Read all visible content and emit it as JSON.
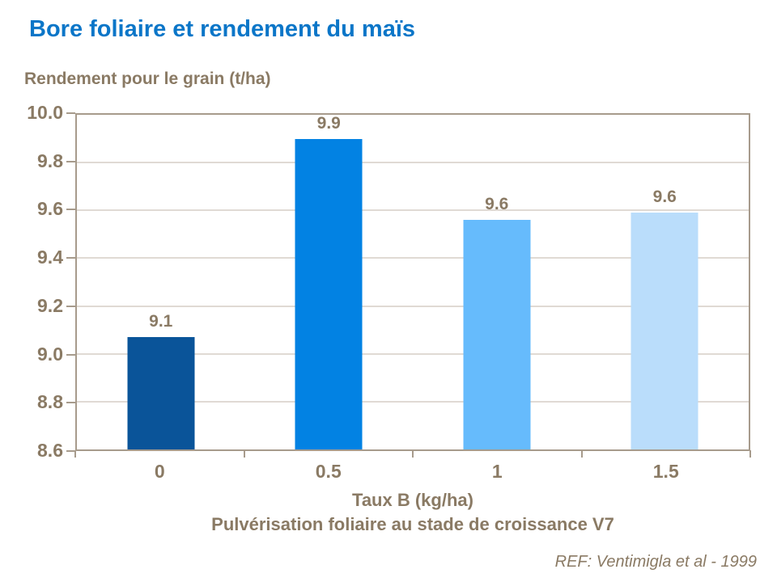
{
  "chart_data": {
    "type": "bar",
    "title": "Bore foliaire et rendement du maïs",
    "ylabel": "Rendement pour le grain (t/ha)",
    "xlabel_line1": "Taux B (kg/ha)",
    "xlabel_line2": "Pulvérisation foliaire au stade de croissance V7",
    "reference": "REF: Ventimigla et al - 1999",
    "categories": [
      "0",
      "0.5",
      "1",
      "1.5"
    ],
    "values": [
      9.1,
      9.9,
      9.6,
      9.6
    ],
    "bar_labels": [
      "9.1",
      "9.9",
      "9.6",
      "9.6"
    ],
    "plotted_values": [
      9.07,
      9.9,
      9.56,
      9.59
    ],
    "ylim": [
      8.6,
      10.0
    ],
    "ytick_step": 0.2,
    "grid": true,
    "legend": "none",
    "bar_colors": [
      "#0A5499",
      "#0282E3",
      "#66BBFC",
      "#BADDFB"
    ],
    "colors": {
      "title": "#0B76C8",
      "text": "#8A7A64",
      "frame": "#A79B8C",
      "grid": "#C0B4A8",
      "background": "#FFFFFF"
    }
  }
}
